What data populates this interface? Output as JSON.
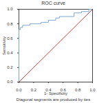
{
  "chart_data": {
    "type": "line",
    "title": "ROC curve",
    "x_label": "1- Specificity",
    "y_label": "Sensitivity",
    "caption": "Diagonal segments are produced by ties",
    "xlim": [
      0,
      1
    ],
    "ylim": [
      0,
      1
    ],
    "xticks": [
      {
        "value": 0,
        "label": "0.0"
      },
      0.2,
      0.4,
      0.6,
      0.8,
      {
        "value": 1,
        "label": "1.0"
      }
    ],
    "yticks": [
      {
        "value": 0,
        "label": "0.0"
      },
      0.2,
      0.4,
      0.6,
      0.8,
      {
        "value": 1,
        "label": "1.0"
      }
    ],
    "series": [
      {
        "color": "#7aa6d6",
        "line_style": "solid",
        "x": [
          0,
          0,
          0.02,
          0.02,
          0.05,
          0.05,
          0.15,
          0.15,
          0.3,
          0.3,
          0.4,
          0.4,
          0.5,
          0.5,
          0.55,
          0.55,
          0.75,
          0.75,
          0.85,
          0.85,
          0.95,
          0.95,
          1
        ],
        "values": [
          0,
          0.72,
          0.72,
          0.75,
          0.75,
          0.78,
          0.78,
          0.8,
          0.8,
          0.82,
          0.82,
          0.85,
          0.85,
          0.88,
          0.88,
          0.9,
          0.9,
          0.95,
          0.95,
          0.97,
          0.97,
          1,
          1
        ]
      },
      {
        "color": "#e0393e",
        "line_style": "solid",
        "x": [
          0,
          1
        ],
        "values": [
          0,
          1
        ]
      }
    ]
  }
}
